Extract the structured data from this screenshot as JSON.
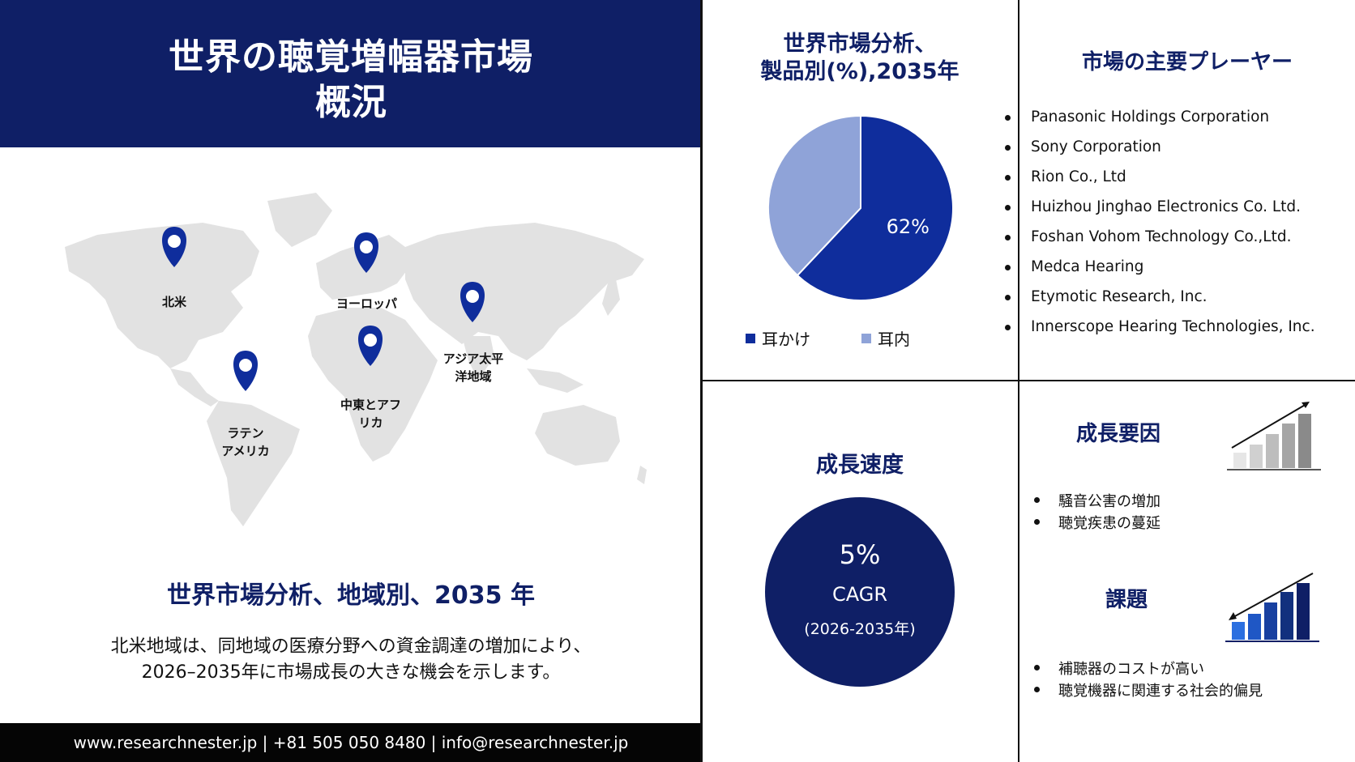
{
  "title": {
    "line1": "世界の聴覚増幅器市場",
    "line2": "概況"
  },
  "map": {
    "pins": [
      {
        "name": "pin-north-america",
        "label": "北米"
      },
      {
        "name": "pin-europe",
        "label": "ヨーロッパ"
      },
      {
        "name": "pin-asia-pacific",
        "label": "アジア太平\n洋地域"
      },
      {
        "name": "pin-mea",
        "label": "中東とアフ\nリカ"
      },
      {
        "name": "pin-latin-america",
        "label": "ラテン\nアメリカ"
      }
    ]
  },
  "region": {
    "title": "世界市場分析、地域別、2035 年",
    "desc_line1": "北米地域は、同地域の医療分野への資金調達の増加により、",
    "desc_line2": "2026–2035年に市場成長の大きな機会を示します。"
  },
  "footer": "www.researchnester.jp | +81 505 050 8480 | info@researchnester.jp",
  "chart_data": {
    "type": "pie",
    "title": "世界市場分析、\n製品別(%),2035年",
    "categories": [
      "耳かけ",
      "耳内"
    ],
    "values": [
      62,
      38
    ],
    "data_labels": [
      "62%",
      ""
    ],
    "colors": [
      "#0f2d9c",
      "#8fa3d8"
    ],
    "legend_position": "bottom"
  },
  "players": {
    "title": "市場の主要プレーヤー",
    "items": [
      "Panasonic Holdings Corporation",
      "Sony Corporation",
      "Rion Co., Ltd",
      "Huizhou Jinghao Electronics Co. Ltd.",
      "Foshan Vohom Technology Co.,Ltd.",
      "Medca Hearing",
      "Etymotic Research, Inc.",
      "Innerscope Hearing Technologies, Inc."
    ]
  },
  "growth_rate": {
    "title": "成長速度",
    "value": "5%",
    "label": "CAGR",
    "period": "(2026-2035年)"
  },
  "drivers": {
    "title": "成長要因",
    "items": [
      "騒音公害の増加",
      "聴覚疾患の蔓延"
    ]
  },
  "challenges": {
    "title": "課題",
    "items": [
      "補聴器のコストが高い",
      "聴覚機器に関連する社会的偏見"
    ]
  },
  "colors": {
    "navy": "#0f1f66",
    "blue": "#0f2d9c",
    "light_blue": "#8fa3d8",
    "map_gray": "#e2e2e2"
  }
}
